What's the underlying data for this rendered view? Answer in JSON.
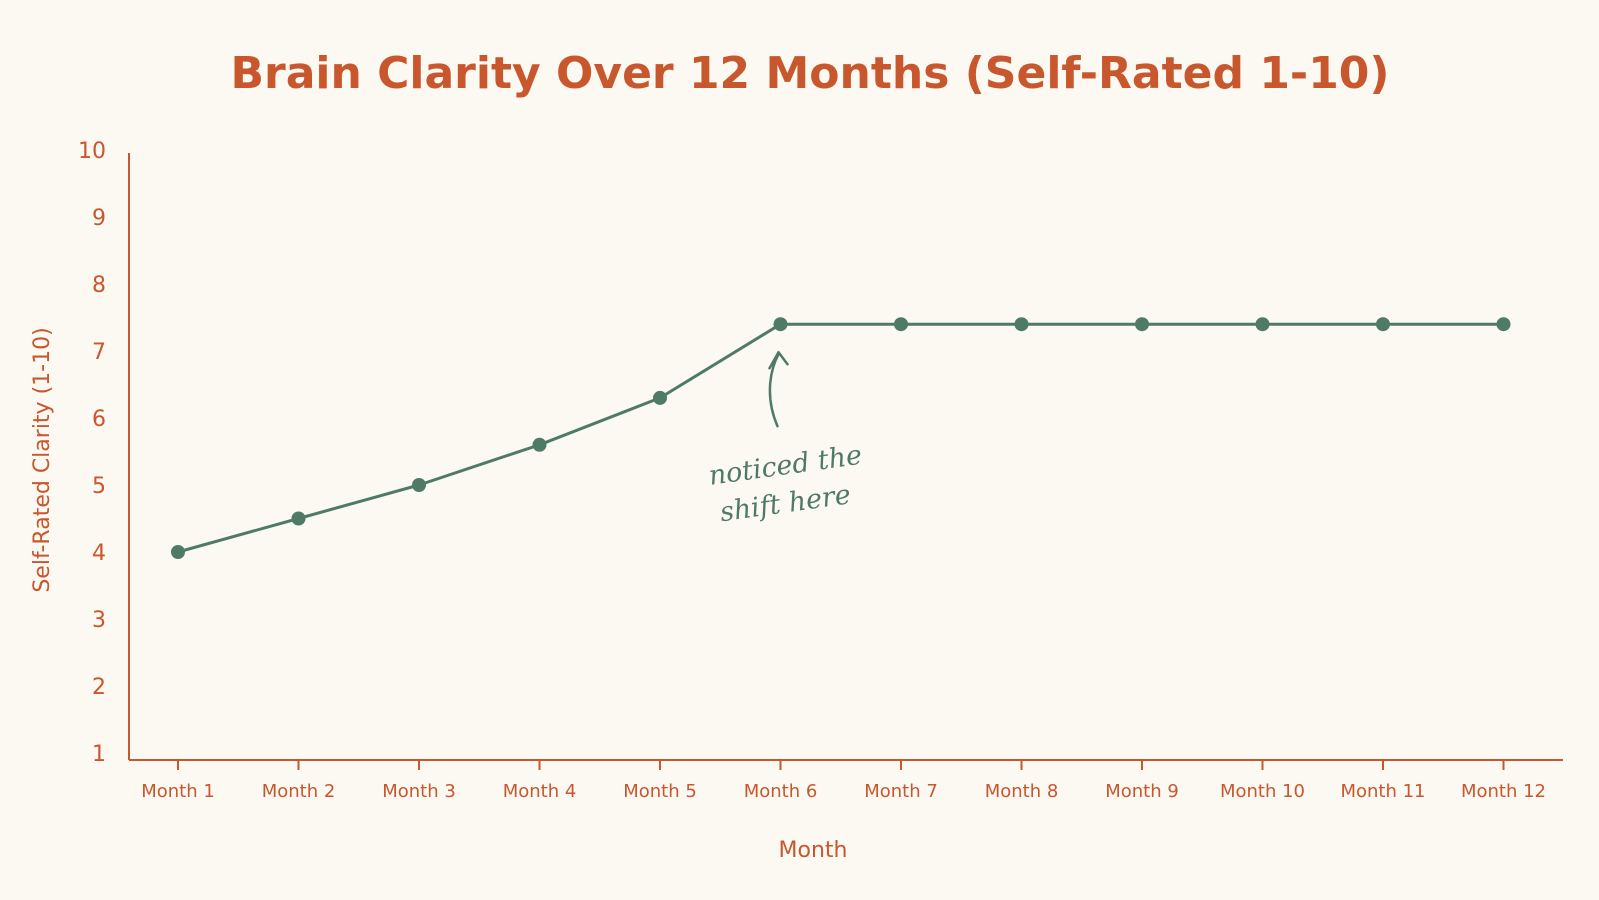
{
  "chart_data": {
    "type": "line",
    "title": "Brain Clarity Over 12 Months (Self-Rated 1-10)",
    "xlabel": "Month",
    "ylabel": "Self-Rated Clarity (1-10)",
    "ylim": [
      1,
      10
    ],
    "yticks": [
      "1",
      "2",
      "3",
      "4",
      "5",
      "6",
      "7",
      "8",
      "9",
      "10"
    ],
    "categories": [
      "Month 1",
      "Month 2",
      "Month 3",
      "Month 4",
      "Month 5",
      "Month 6",
      "Month 7",
      "Month 8",
      "Month 9",
      "Month 10",
      "Month 11",
      "Month 12"
    ],
    "series": [
      {
        "values": [
          4.0,
          4.5,
          5.0,
          5.6,
          6.3,
          7.4,
          7.4,
          7.4,
          7.4,
          7.4,
          7.4,
          7.4
        ]
      }
    ],
    "annotations": [
      {
        "text_lines": [
          "noticed the",
          "shift here"
        ],
        "category": "Month 6"
      }
    ],
    "grid": false,
    "legend": "none",
    "colors": {
      "text": "#c8572e",
      "line": "#4f7b66",
      "axis": "#c8572e",
      "background": "#fcf8f2"
    }
  }
}
